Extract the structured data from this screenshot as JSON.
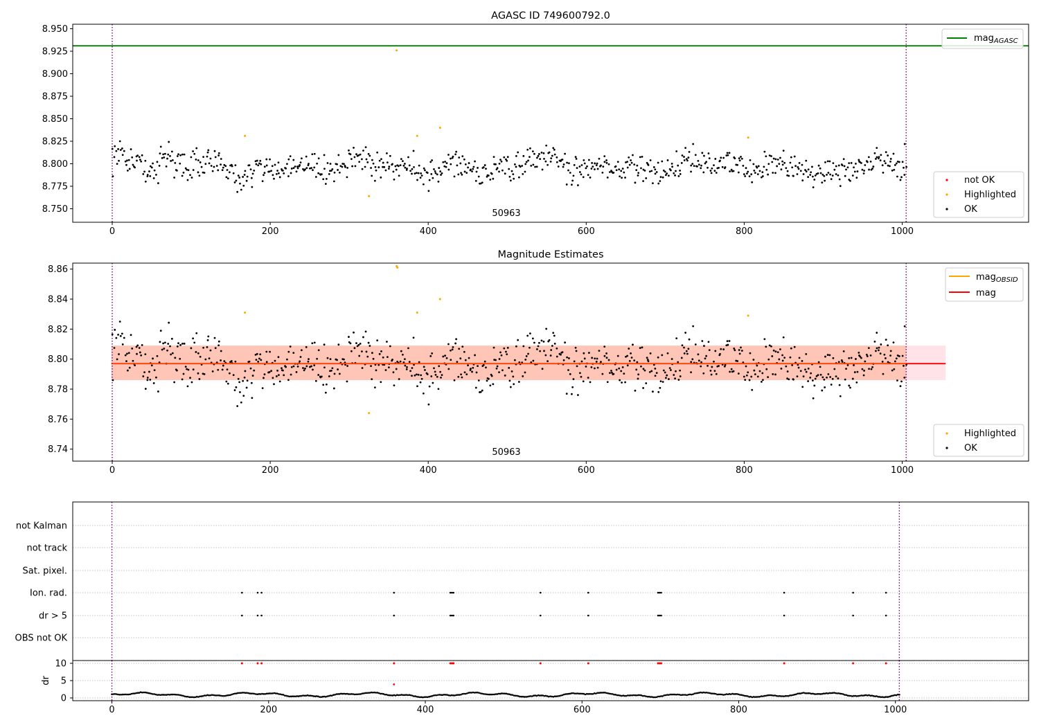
{
  "colors": {
    "ok": "#000000",
    "highlighted": "#ffa500",
    "not_ok": "#ff0000",
    "agasc_line": "#008000",
    "mag_line": "#ff0000",
    "obsid_line": "#ffa500",
    "band_orange": "#ffa07a",
    "band_pink": "#ffc0cb",
    "obsid_marker": "#800080",
    "grid": "#b0b0b0"
  },
  "chart_data": [
    {
      "type": "scatter",
      "title": "AGASC ID 749600792.0",
      "xlim": [
        -50,
        1160
      ],
      "ylim": [
        8.735,
        8.955
      ],
      "xticks": [
        0,
        200,
        400,
        600,
        800,
        1000
      ],
      "yticks": [
        "8.750",
        "8.775",
        "8.800",
        "8.825",
        "8.850",
        "8.875",
        "8.900",
        "8.925",
        "8.950"
      ],
      "obsid_label": "50963",
      "obsid_bounds": [
        0,
        1005
      ],
      "mag_agasc": 8.931,
      "mag_agasc_label": "mag",
      "mag_agasc_sub": "AGASC",
      "legend_top": "top-right",
      "legend_bottom": {
        "position": "lower-right",
        "entries": [
          "not OK",
          "Highlighted",
          "OK"
        ]
      },
      "ok_stats": {
        "n": 800,
        "x_range": [
          0,
          1005
        ],
        "mean": 8.797,
        "std": 0.011
      },
      "highlighted_points": [
        [
          168,
          8.831
        ],
        [
          325,
          8.764
        ],
        [
          360,
          8.926
        ],
        [
          386,
          8.831
        ],
        [
          415,
          8.84
        ],
        [
          805,
          8.829
        ]
      ]
    },
    {
      "type": "scatter",
      "title": "Magnitude Estimates",
      "xlim": [
        -50,
        1160
      ],
      "ylim": [
        8.732,
        8.864
      ],
      "xticks": [
        0,
        200,
        400,
        600,
        800,
        1000
      ],
      "yticks": [
        "8.74",
        "8.76",
        "8.78",
        "8.80",
        "8.82",
        "8.84",
        "8.86"
      ],
      "obsid_label": "50963",
      "obsid_bounds": [
        0,
        1005
      ],
      "mag": 8.797,
      "mag_band": [
        8.786,
        8.809
      ],
      "mag_line_xrange": [
        -1,
        1055
      ],
      "legend_top": {
        "position": "top-right",
        "entries": [
          {
            "label": "mag",
            "sub": "OBSID"
          },
          {
            "label": "mag",
            "sub": ""
          }
        ]
      },
      "legend_bottom": {
        "position": "lower-right",
        "entries": [
          "Highlighted",
          "OK"
        ]
      },
      "highlighted_points": [
        [
          168,
          8.831
        ],
        [
          325,
          8.764
        ],
        [
          360,
          8.862
        ],
        [
          361,
          8.861
        ],
        [
          386,
          8.831
        ],
        [
          415,
          8.84
        ],
        [
          805,
          8.829
        ]
      ]
    },
    {
      "type": "scatter",
      "title": "",
      "xlim": [
        -50,
        1170
      ],
      "xticks": [
        0,
        200,
        400,
        600,
        800,
        1000
      ],
      "flag_categories": [
        "not Kalman",
        "not track",
        "Sat. pixel.",
        "Ion. rad.",
        "dr > 5",
        "OBS not OK"
      ],
      "flag_x": [
        166,
        186,
        191,
        360,
        432,
        434,
        436,
        547,
        608,
        697,
        699,
        701,
        858,
        946,
        988
      ],
      "dr_ylabel": "dr",
      "dr_yticks": [
        0,
        5,
        10
      ],
      "dr_ylim": [
        -0.8,
        10.8
      ],
      "dr_clipped_x": [
        166,
        186,
        191,
        360,
        432,
        434,
        436,
        547,
        608,
        697,
        699,
        701,
        858,
        946,
        988
      ],
      "dr_extra_point": [
        360,
        3.9
      ]
    }
  ]
}
